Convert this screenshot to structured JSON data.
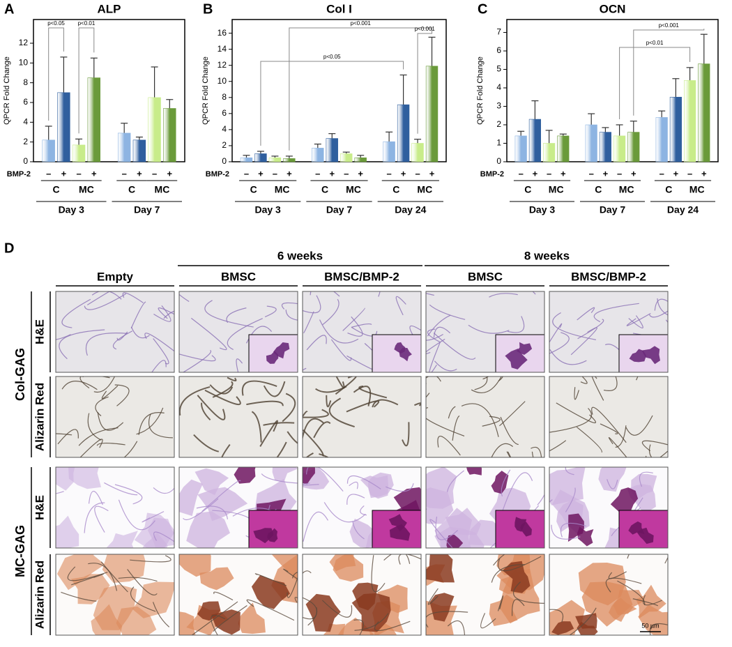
{
  "chart_data": [
    {
      "type": "bar",
      "panel": "A",
      "title": "ALP",
      "ylabel": "QPCR Fold Change",
      "treatment_label": "BMP-2",
      "categories": [
        "–",
        "+",
        "–",
        "+",
        "–",
        "+",
        "–",
        "+"
      ],
      "values": [
        2.2,
        7.0,
        1.7,
        8.5,
        2.9,
        2.2,
        6.5,
        5.4
      ],
      "errors": [
        1.4,
        3.6,
        0.6,
        2.0,
        1.0,
        0.3,
        3.1,
        0.9
      ],
      "colors": [
        "#8db4e2",
        "#2f5f9e",
        "#c8ec8a",
        "#6a9a3a",
        "#8db4e2",
        "#2f5f9e",
        "#c8ec8a",
        "#6a9a3a"
      ],
      "groups": [
        "C",
        "MC",
        "C",
        "MC"
      ],
      "days": [
        "Day 3",
        "Day 7"
      ],
      "ylim": [
        0,
        14.4
      ],
      "yticks": [
        0,
        2,
        4,
        6,
        8,
        10,
        12
      ],
      "annotations": [
        "p<0.05",
        "p<0.01"
      ]
    },
    {
      "type": "bar",
      "panel": "B",
      "title": "Col I",
      "ylabel": "QPCR Fold Change",
      "treatment_label": "BMP-2",
      "categories": [
        "–",
        "+",
        "–",
        "+",
        "–",
        "+",
        "–",
        "+",
        "–",
        "+",
        "–",
        "+"
      ],
      "values": [
        0.5,
        1.0,
        0.5,
        0.4,
        1.7,
        2.9,
        1.0,
        0.5,
        2.5,
        7.1,
        2.3,
        11.9
      ],
      "errors": [
        0.3,
        0.3,
        0.2,
        0.3,
        0.5,
        0.6,
        0.2,
        0.3,
        1.2,
        3.7,
        0.5,
        3.6
      ],
      "colors": [
        "#8db4e2",
        "#2f5f9e",
        "#c8ec8a",
        "#6a9a3a",
        "#8db4e2",
        "#2f5f9e",
        "#c8ec8a",
        "#6a9a3a",
        "#8db4e2",
        "#2f5f9e",
        "#c8ec8a",
        "#6a9a3a"
      ],
      "groups": [
        "C",
        "MC",
        "C",
        "MC",
        "C",
        "MC"
      ],
      "days": [
        "Day 3",
        "Day 7",
        "Day 24"
      ],
      "ylim": [
        0,
        17.7
      ],
      "yticks": [
        0,
        2,
        4,
        6,
        8,
        10,
        12,
        14,
        16
      ],
      "annotations": [
        "p<0.05",
        "p<0.001",
        "p<0.001"
      ]
    },
    {
      "type": "bar",
      "panel": "C",
      "title": "OCN",
      "ylabel": "QPCR Fold Change",
      "treatment_label": "BMP-2",
      "categories": [
        "–",
        "+",
        "–",
        "+",
        "–",
        "+",
        "–",
        "+",
        "–",
        "+",
        "–",
        "+"
      ],
      "values": [
        1.4,
        2.3,
        1.0,
        1.4,
        2.0,
        1.6,
        1.4,
        1.6,
        2.4,
        3.5,
        4.4,
        5.3
      ],
      "errors": [
        0.25,
        1.0,
        0.7,
        0.1,
        0.6,
        0.25,
        0.6,
        0.6,
        0.35,
        1.0,
        0.7,
        1.6
      ],
      "colors": [
        "#8db4e2",
        "#2f5f9e",
        "#c8ec8a",
        "#6a9a3a",
        "#8db4e2",
        "#2f5f9e",
        "#c8ec8a",
        "#6a9a3a",
        "#8db4e2",
        "#2f5f9e",
        "#c8ec8a",
        "#6a9a3a"
      ],
      "groups": [
        "C",
        "MC",
        "C",
        "MC",
        "C",
        "MC"
      ],
      "days": [
        "Day 3",
        "Day 7",
        "Day 24"
      ],
      "ylim": [
        0,
        7.7
      ],
      "yticks": [
        0,
        1,
        2,
        3,
        4,
        5,
        6,
        7
      ],
      "annotations": [
        "p<0.001",
        "p<0.01"
      ]
    }
  ],
  "panel_d": {
    "label": "D",
    "week_headers": [
      "6 weeks",
      "8 weeks"
    ],
    "columns": [
      "Empty",
      "BMSC",
      "BMSC/BMP-2",
      "BMSC",
      "BMSC/BMP-2"
    ],
    "scaffolds": [
      "Col-GAG",
      "MC-GAG"
    ],
    "stains": [
      "H&E",
      "Alizarin Red",
      "H&E",
      "Alizarin Red"
    ],
    "scale_bar": "50 µm"
  }
}
